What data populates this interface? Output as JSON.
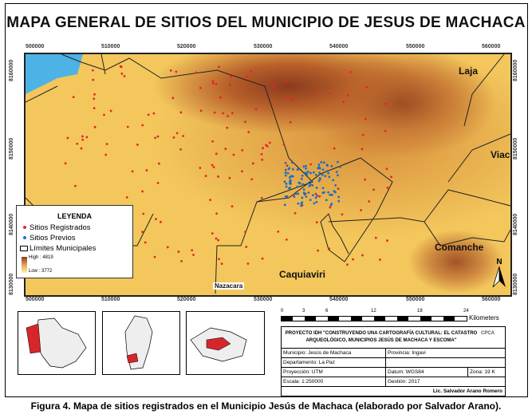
{
  "title": "MAPA GENERAL DE SITIOS DEL MUNICIPIO DE JESUS DE MACHACA",
  "axes": {
    "x_ticks": [
      "500000",
      "510000",
      "520000",
      "530000",
      "540000",
      "550000",
      "560000"
    ],
    "y_ticks": [
      "8160000",
      "8150000",
      "8140000",
      "8130000"
    ]
  },
  "places": {
    "laja": "Laja",
    "viacha": "Viac",
    "comanche": "Comanche",
    "caquiaviri": "Caquiaviri",
    "nazacara": "Nazacara"
  },
  "legend": {
    "title": "LEYENDA",
    "registrados": "Sitios Registrados",
    "previos": "Sitios Previos",
    "limites": "Límites Municipales",
    "high": "High : 4819",
    "low": "Low : 3772"
  },
  "colors": {
    "registrados": "#e3262b",
    "previos": "#1a6fc4",
    "lake": "#4db3e6",
    "high": "#8b3a1f",
    "low": "#fff2a8"
  },
  "north": "N",
  "scale": {
    "ticks": [
      "0",
      "3",
      "6",
      "12",
      "18",
      "24"
    ],
    "unit": "Kilometers"
  },
  "info": {
    "project": "PROYECTO IDH \"CONSTRUYENDO UNA CARTOGRAFÍA CULTURAL: EL CATASTRO ARQUEOLÓGICO, MUNICIPIOS JESÚS DE MACHACA Y ESCOMA\"",
    "logo": "CPCA",
    "municipio": "Municipio: Jesús de Machaca",
    "provincia": "Provincia: Ingavi",
    "departamento": "Departamento: La Paz",
    "proyeccion": "Proyección: UTM",
    "datum": "Datum: WGS84",
    "zona": "Zona: 19 K",
    "escala": "Escala: 1:250000",
    "gestion": "Gestión: 2017",
    "autor": "Lic. Salvador Arano Romero"
  },
  "caption": "Figura 4. Mapa de sitios registrados en el Municipio Jesús de Machaca (elaborado por Salvador Arano)."
}
